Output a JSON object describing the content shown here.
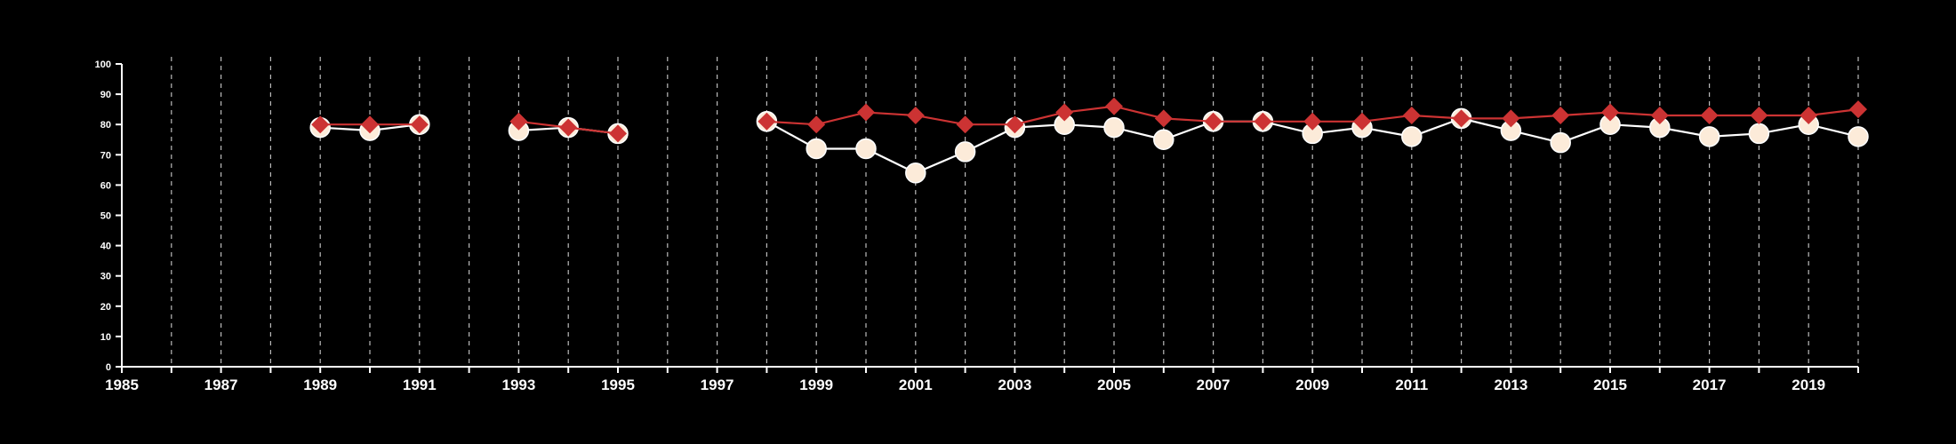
{
  "chart_data": {
    "type": "line",
    "title": "",
    "xlabel": "",
    "ylabel": "",
    "xlim": [
      1985,
      2020
    ],
    "ylim": [
      0,
      100
    ],
    "x_ticks": [
      1985,
      1987,
      1989,
      1991,
      1993,
      1995,
      1997,
      1999,
      2001,
      2003,
      2005,
      2007,
      2009,
      2011,
      2013,
      2015,
      2017,
      2019
    ],
    "y_ticks": [
      0,
      10,
      20,
      30,
      40,
      50,
      60,
      70,
      80,
      90,
      100
    ],
    "grid_years": [
      1986,
      1987,
      1988,
      1989,
      1990,
      1991,
      1992,
      1993,
      1994,
      1995,
      1996,
      1997,
      1998,
      1999,
      2000,
      2001,
      2002,
      2003,
      2004,
      2005,
      2006,
      2007,
      2008,
      2009,
      2010,
      2011,
      2012,
      2013,
      2014,
      2015,
      2016,
      2017,
      2018,
      2019,
      2020
    ],
    "grid": "vertical dashed",
    "legend": "none",
    "series": [
      {
        "marker": "circle",
        "color": "#ffffff",
        "fill": "#fcebd9",
        "segments": [
          [
            [
              1989,
              79
            ],
            [
              1990,
              78
            ],
            [
              1991,
              80
            ]
          ],
          [
            [
              1993,
              78
            ],
            [
              1994,
              79
            ],
            [
              1995,
              77
            ]
          ],
          [
            [
              1998,
              81
            ],
            [
              1999,
              72
            ],
            [
              2000,
              72
            ],
            [
              2001,
              64
            ],
            [
              2002,
              71
            ],
            [
              2003,
              79
            ],
            [
              2004,
              80
            ],
            [
              2005,
              79
            ],
            [
              2006,
              75
            ],
            [
              2007,
              81
            ],
            [
              2008,
              81
            ],
            [
              2009,
              77
            ],
            [
              2010,
              79
            ],
            [
              2011,
              76
            ],
            [
              2012,
              82
            ],
            [
              2013,
              78
            ],
            [
              2014,
              74
            ],
            [
              2015,
              80
            ],
            [
              2016,
              79
            ],
            [
              2017,
              76
            ],
            [
              2018,
              77
            ],
            [
              2019,
              80
            ],
            [
              2020,
              76
            ]
          ]
        ]
      },
      {
        "marker": "diamond",
        "color": "#cc3333",
        "segments": [
          [
            [
              1989,
              80
            ],
            [
              1990,
              80
            ],
            [
              1991,
              80
            ]
          ],
          [
            [
              1993,
              81
            ],
            [
              1994,
              79
            ],
            [
              1995,
              77
            ]
          ],
          [
            [
              1998,
              81
            ],
            [
              1999,
              80
            ],
            [
              2000,
              84
            ],
            [
              2001,
              83
            ],
            [
              2002,
              80
            ],
            [
              2003,
              80
            ],
            [
              2004,
              84
            ],
            [
              2005,
              86
            ],
            [
              2006,
              82
            ],
            [
              2007,
              81
            ],
            [
              2008,
              81
            ],
            [
              2009,
              81
            ],
            [
              2010,
              81
            ],
            [
              2011,
              83
            ],
            [
              2012,
              82
            ],
            [
              2013,
              82
            ],
            [
              2014,
              83
            ],
            [
              2015,
              84
            ],
            [
              2016,
              83
            ],
            [
              2017,
              83
            ],
            [
              2018,
              83
            ],
            [
              2019,
              83
            ],
            [
              2020,
              85
            ]
          ]
        ]
      }
    ]
  }
}
